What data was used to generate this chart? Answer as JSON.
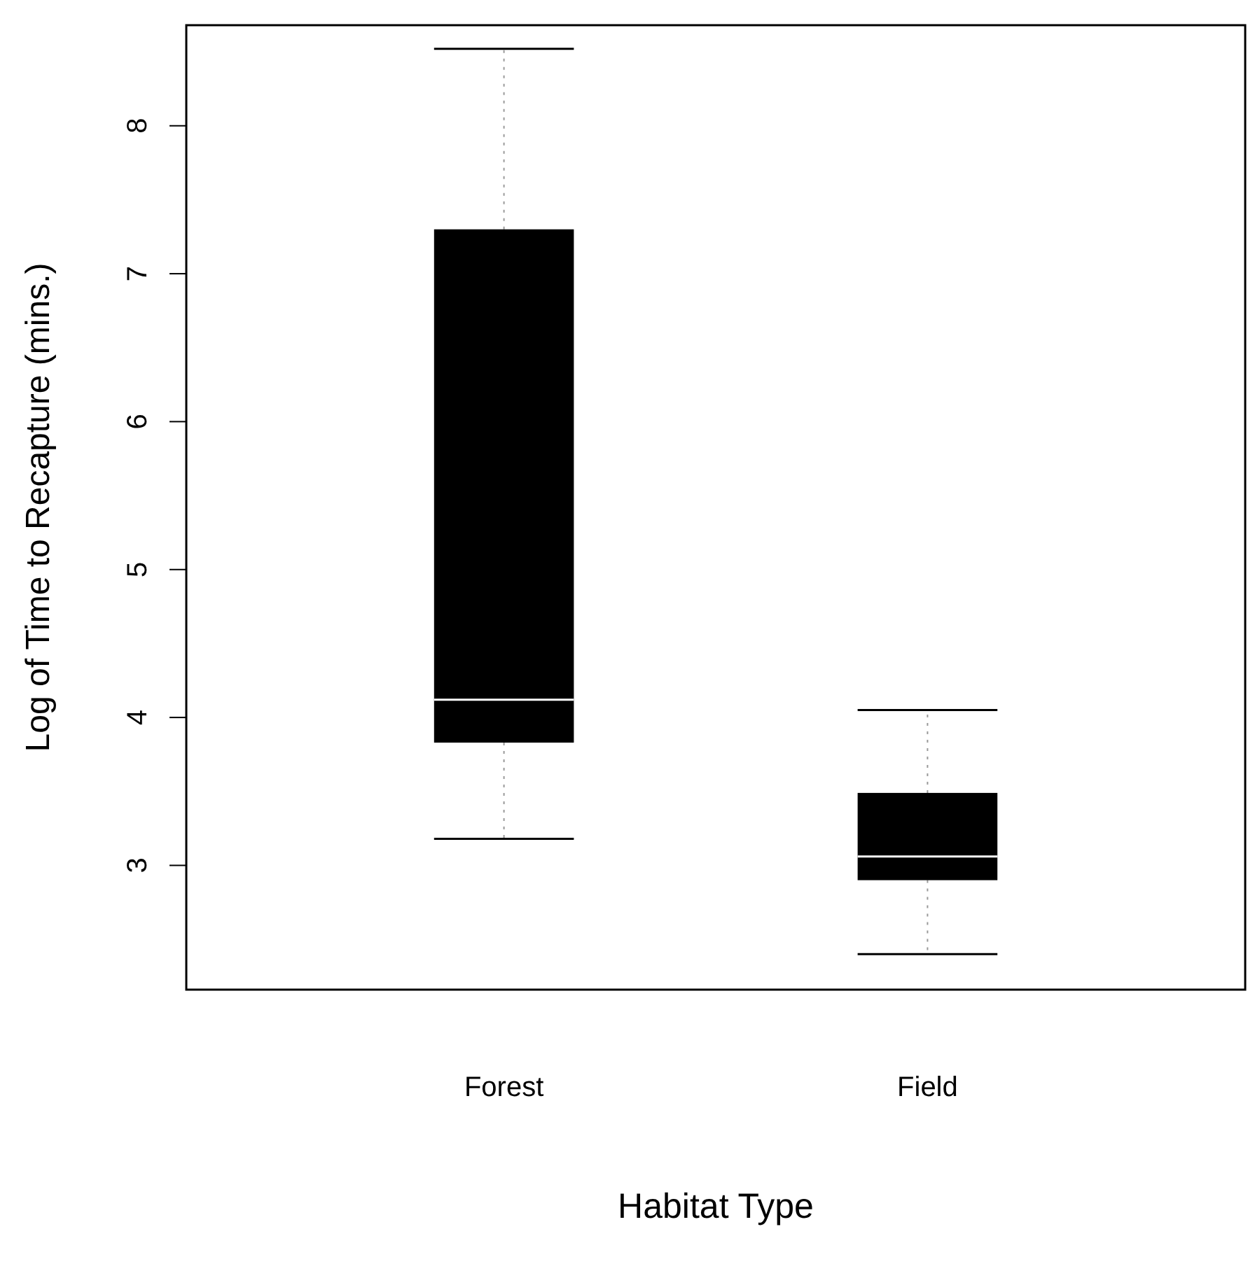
{
  "chart_data": {
    "type": "box",
    "xlabel": "Habitat Type",
    "ylabel": "Log of Time to Recapture (mins.)",
    "categories": [
      "Forest",
      "Field"
    ],
    "boxes": [
      {
        "low": 3.18,
        "q1": 3.83,
        "median": 4.12,
        "q3": 7.3,
        "high": 8.52
      },
      {
        "low": 2.4,
        "q1": 2.9,
        "median": 3.06,
        "q3": 3.49,
        "high": 4.05
      }
    ],
    "color": "#000000",
    "ylim": [
      2.16,
      8.68
    ],
    "yticks": [
      3,
      4,
      5,
      6,
      7,
      8
    ],
    "grid": false
  }
}
